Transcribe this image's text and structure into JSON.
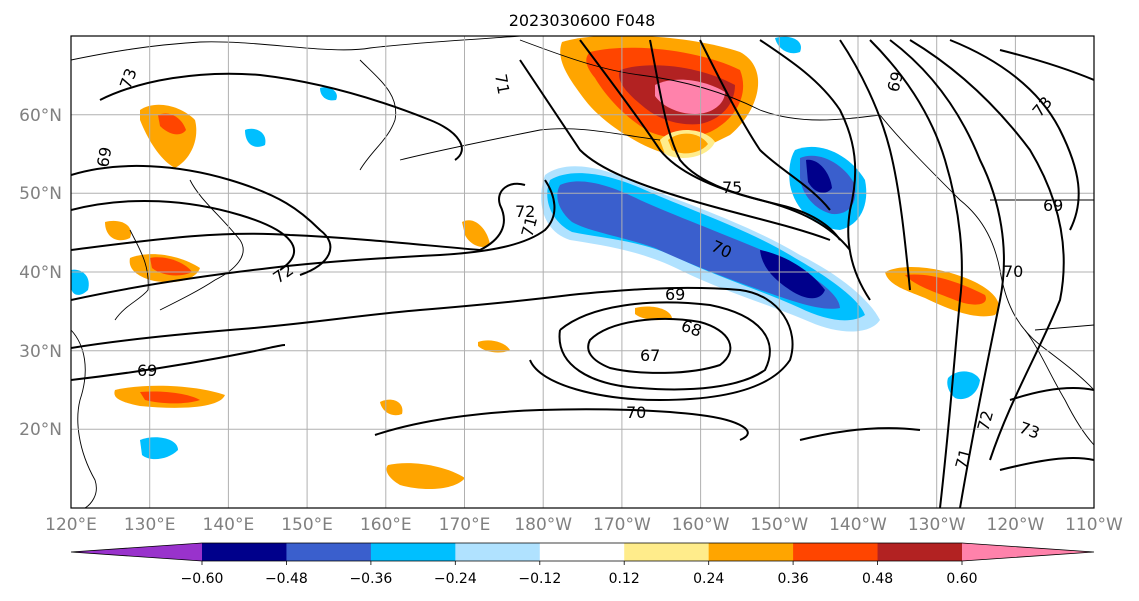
{
  "title": "2023030600 F048",
  "map": {
    "lon_range": [
      "120°E",
      "110°W"
    ],
    "lat_range": [
      "10°N",
      "70°N"
    ],
    "gridlines": true,
    "lat_ticks": [
      "60°N",
      "50°N",
      "40°N",
      "30°N",
      "20°N"
    ],
    "lon_ticks": [
      "120°E",
      "130°E",
      "140°E",
      "150°E",
      "160°E",
      "170°E",
      "180°W",
      "170°W",
      "160°W",
      "150°W",
      "140°W",
      "130°W",
      "120°W",
      "110°W"
    ]
  },
  "contour_labels": [
    "73",
    "69",
    "72",
    "71",
    "72",
    "75",
    "71",
    "69",
    "68",
    "67",
    "70",
    "69",
    "70",
    "69",
    "72",
    "71",
    "73",
    "69",
    "70",
    "73"
  ],
  "colorbar": {
    "extend": "both",
    "ticks": [
      "−0.60",
      "−0.48",
      "−0.36",
      "−0.24",
      "−0.12",
      "0.12",
      "0.24",
      "0.36",
      "0.48",
      "0.60"
    ],
    "colors": [
      "#9932cc",
      "#00008b",
      "#3a5fcd",
      "#00bfff",
      "#b0e2ff",
      "#ffffff",
      "#ffec8b",
      "#ffa500",
      "#ff4500",
      "#b22222",
      "#ff82ab"
    ]
  }
}
